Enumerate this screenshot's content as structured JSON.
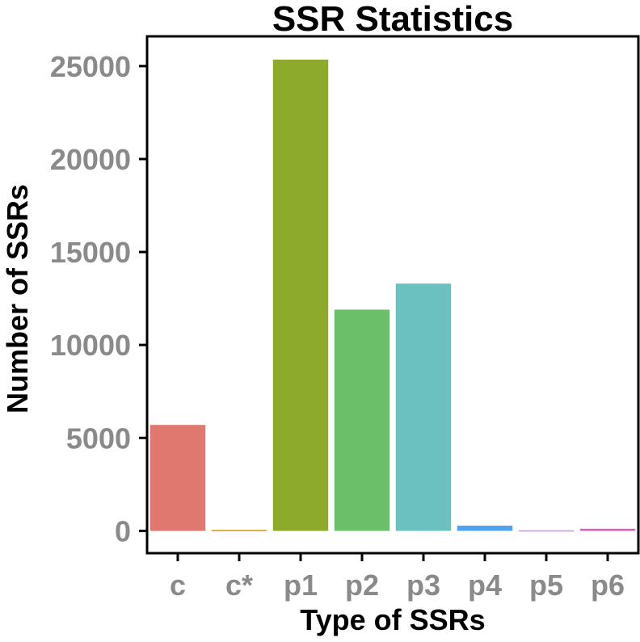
{
  "chart_data": {
    "type": "bar",
    "title": "SSR Statistics",
    "xlabel": "Type of SSRs",
    "ylabel": "Number of SSRs",
    "categories": [
      "c",
      "c*",
      "p1",
      "p2",
      "p3",
      "p4",
      "p5",
      "p6"
    ],
    "values": [
      5700,
      60,
      25350,
      11900,
      13300,
      280,
      30,
      110
    ],
    "colors": [
      "#E07870",
      "#C89A30",
      "#8DAA2A",
      "#6BBF68",
      "#6BC0C0",
      "#4EA2F0",
      "#C290F0",
      "#E05BB8"
    ],
    "ylim": [
      -1200,
      26600
    ],
    "yticks": [
      0,
      5000,
      10000,
      15000,
      20000,
      25000
    ],
    "ytick_labels": [
      "0",
      "5000",
      "10000",
      "15000",
      "20000",
      "25000"
    ],
    "grid": false,
    "legend": "none"
  }
}
